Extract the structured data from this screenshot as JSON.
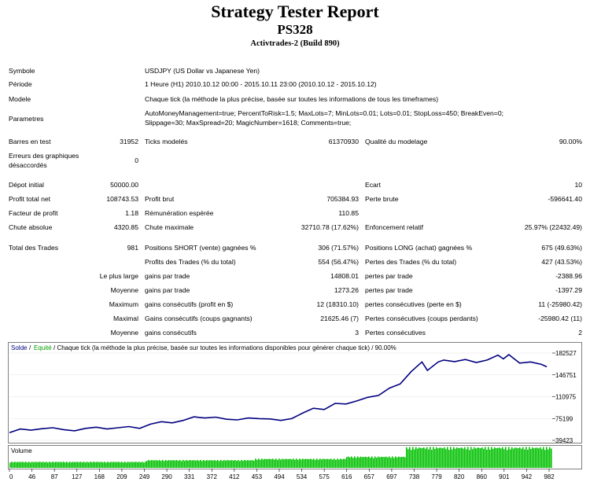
{
  "header": {
    "title": "Strategy Tester Report",
    "subtitle": "PS328",
    "build": "Activtrades-2 (Build 890)"
  },
  "info": {
    "symbol_label": "Symbole",
    "symbol_value": "USDJPY (US Dollar vs Japanese Yen)",
    "period_label": "Période",
    "period_value": "1 Heure (H1) 2010.10.12 00:00 - 2015.10.11 23:00 (2010.10.12 - 2015.10.12)",
    "model_label": "Modele",
    "model_value": "Chaque tick (la méthode la plus précise, basée sur toutes les informations de tous les timeframes)",
    "params_label": "Parametres",
    "params_line1": "AutoMoneyManagement=true; PercentToRisk=1.5; MaxLots=7; MinLots=0.01; Lots=0.01; StopLoss=450; BreakEven=0;",
    "params_line2": "Slippage=30; MaxSpread=20; MagicNumber=1618; Comments=true;"
  },
  "stats": {
    "bars_label": "Barres en test",
    "bars_value": "31952",
    "ticks_label": "Ticks modelés",
    "ticks_value": "61370930",
    "quality_label": "Qualité du modelage",
    "quality_value": "90.00%",
    "errors_label_1": "Erreurs des graphiques",
    "errors_label_2": "désaccordés",
    "errors_value": "0",
    "deposit_label": "Dépot initial",
    "deposit_value": "50000.00",
    "spread_label": "Ecart",
    "spread_value": "10",
    "netprofit_label": "Profit total net",
    "netprofit_value": "108743.53",
    "grossprofit_label": "Profit brut",
    "grossprofit_value": "705384.93",
    "grossloss_label": "Perte brute",
    "grossloss_value": "-596641.40",
    "pf_label": "Facteur de profit",
    "pf_value": "1.18",
    "payoff_label": "Rémunération espérée",
    "payoff_value": "110.85",
    "absdd_label": "Chute absolue",
    "absdd_value": "4320.85",
    "maxdd_label": "Chute maximale",
    "maxdd_value": "32710.78 (17.62%)",
    "reldd_label": "Enfoncement relatif",
    "reldd_value": "25.97% (22432.49)",
    "trades_label": "Total des Trades",
    "trades_value": "981",
    "short_label": "Positions SHORT (vente) gagnées %",
    "short_value": "306 (71.57%)",
    "long_label": "Positions LONG (achat) gagnées %",
    "long_value": "675 (49.63%)",
    "profittrades_label": "Profits des Trades (% du total)",
    "profittrades_value": "554 (56.47%)",
    "losstrades_label": "Pertes des Trades (% du total)",
    "losstrades_value": "427 (43.53%)",
    "largest_label": "Le plus large",
    "largest_profit_label": "gains par trade",
    "largest_profit_value": "14808.01",
    "largest_loss_label": "pertes par trade",
    "largest_loss_value": "-2388.96",
    "average_label": "Moyenne",
    "avg_profit_label": "gains par trade",
    "avg_profit_value": "1273.26",
    "avg_loss_label": "pertes par trade",
    "avg_loss_value": "-1397.29",
    "maximum_label": "Maximum",
    "max_wins_label": "gains consécutifs (profit en $)",
    "max_wins_value": "12 (18310.10)",
    "max_losses_label": "pertes consécutives (perte en $)",
    "max_losses_value": "11 (-25980.42)",
    "maximal_label": "Maximal",
    "maximal_wins_label": "Gains consécutifs (coups gagnants)",
    "maximal_wins_value": "21625.46 (7)",
    "maximal_losses_label": "Pertes consécutives (coups perdants)",
    "maximal_losses_value": "-25980.42 (11)",
    "average2_label": "Moyenne",
    "avg_wins_label": "gains consécutifs",
    "avg_wins_value": "3",
    "avg_losses_label": "Pertes consécutives",
    "avg_losses_value": "2"
  },
  "chart_data": {
    "type": "line",
    "legend_balance": "Solde",
    "legend_sep": "/",
    "legend_equity": "Equité",
    "legend_rest": "/ Chaque tick (la méthode la plus précise, basée sur toutes les informations disponibles pour générer chaque tick) / 90.00%",
    "volume_label": "Volume",
    "y_ticks": [
      "182527",
      "146751",
      "110975",
      "75199",
      "39423"
    ],
    "x_ticks": [
      "0",
      "46",
      "87",
      "127",
      "168",
      "209",
      "249",
      "290",
      "331",
      "372",
      "412",
      "453",
      "494",
      "534",
      "575",
      "616",
      "657",
      "697",
      "738",
      "779",
      "820",
      "860",
      "901",
      "942",
      "982"
    ],
    "ylim": [
      39423,
      182527
    ],
    "xlim": [
      0,
      1000
    ],
    "series": [
      {
        "color": "#00007f",
        "x": [
          0,
          20,
          40,
          60,
          80,
          100,
          120,
          140,
          160,
          180,
          200,
          220,
          240,
          260,
          280,
          300,
          320,
          340,
          360,
          380,
          400,
          420,
          440,
          460,
          480,
          500,
          520,
          540,
          560,
          580,
          600,
          620,
          640,
          660,
          680,
          700,
          720,
          740,
          760,
          770,
          790,
          800,
          820,
          840,
          860,
          880,
          900,
          910,
          920,
          940,
          960,
          980,
          990
        ],
        "y": [
          52000,
          58000,
          56000,
          58500,
          60000,
          57000,
          55000,
          59000,
          61000,
          58000,
          60000,
          62000,
          59000,
          66000,
          70000,
          68000,
          72000,
          78000,
          76000,
          77500,
          74000,
          73000,
          76000,
          75000,
          74500,
          72000,
          75000,
          84000,
          92000,
          90000,
          100000,
          99000,
          104000,
          110000,
          113000,
          125000,
          132000,
          152000,
          168000,
          154000,
          168000,
          171000,
          168500,
          172000,
          167000,
          171000,
          179000,
          173000,
          180000,
          166000,
          168000,
          164000,
          160000
        ]
      }
    ]
  }
}
